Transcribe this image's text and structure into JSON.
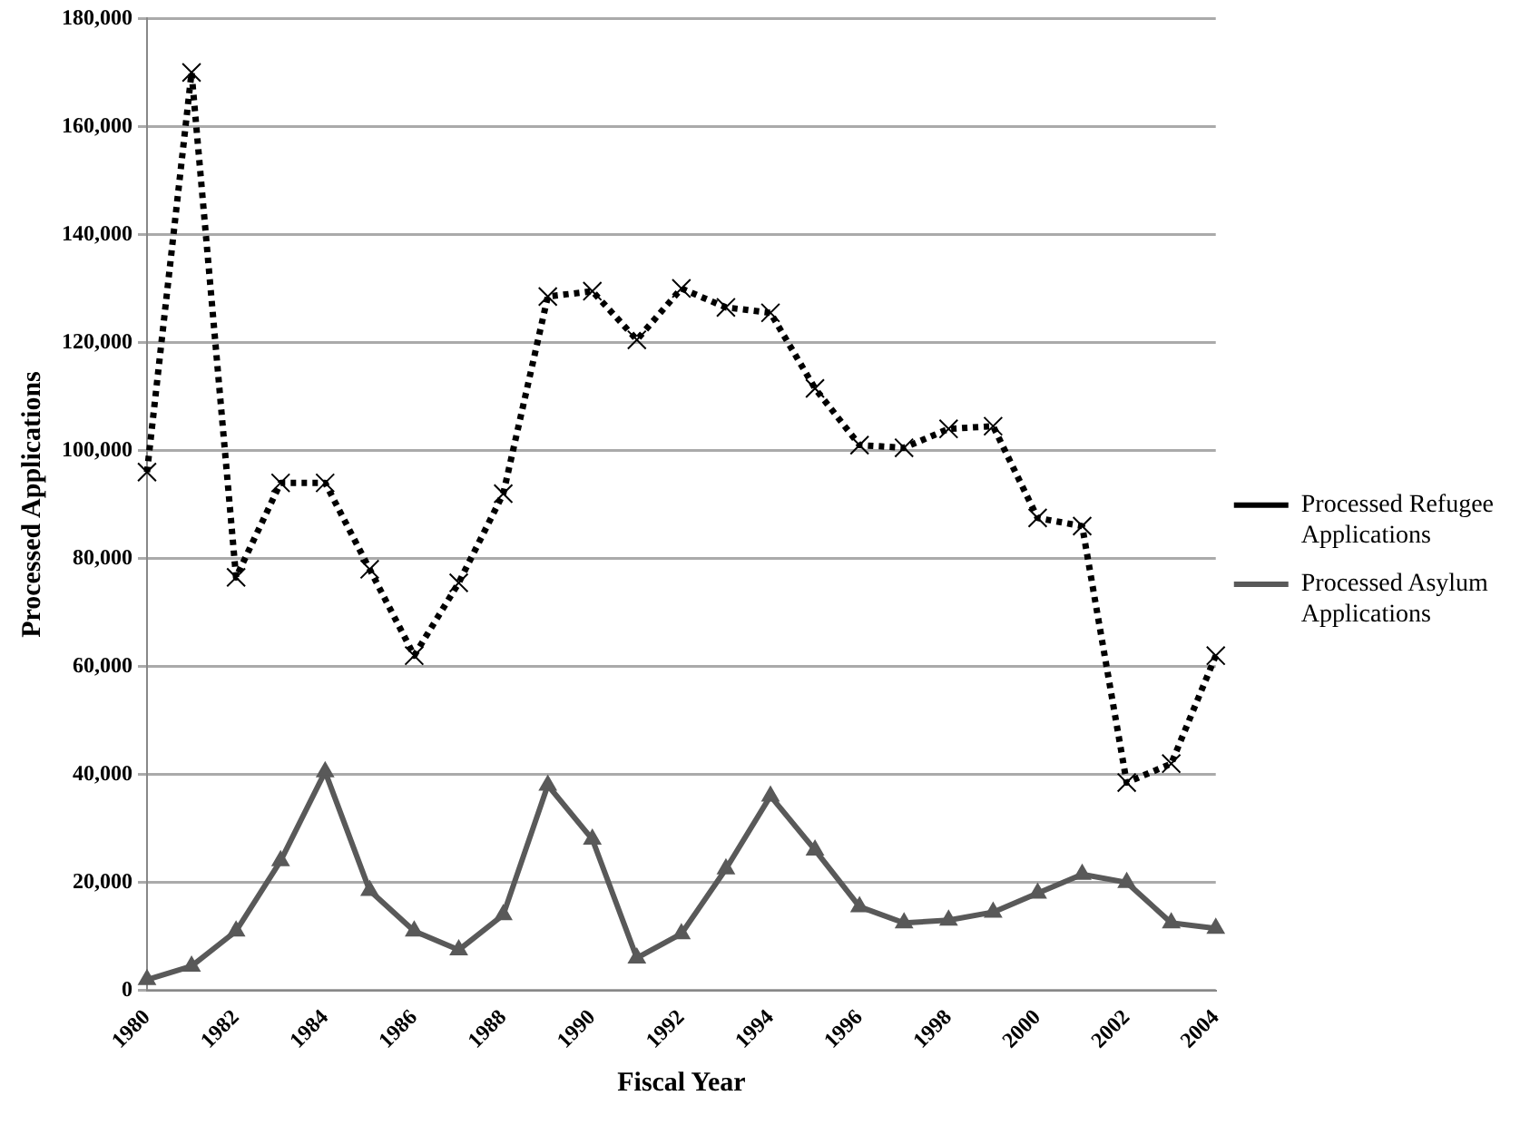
{
  "chart_data": {
    "type": "line",
    "xlabel": "Fiscal Year",
    "ylabel": "Processed Applications",
    "categories": [
      "1980",
      null,
      "1982",
      null,
      "1984",
      null,
      "1986",
      null,
      "1988",
      null,
      "1990",
      null,
      "1992",
      null,
      "1994",
      null,
      "1996",
      null,
      "1998",
      null,
      "2000",
      null,
      "2002",
      null,
      "2004"
    ],
    "series": [
      {
        "name": "Processed Refugee Applications",
        "color": "#000000",
        "marker": "cross",
        "line_style": "dotted",
        "values": [
          96000,
          170000,
          76500,
          94000,
          94000,
          78000,
          62000,
          75500,
          92000,
          128500,
          129500,
          120500,
          130000,
          126500,
          125500,
          111500,
          101000,
          100500,
          104000,
          104500,
          87500,
          86000,
          38500,
          42000,
          62000
        ]
      },
      {
        "name": "Processed Asylum Applications",
        "color": "#595959",
        "marker": "triangle",
        "line_style": "solid",
        "values": [
          2000,
          4500,
          11000,
          24000,
          40500,
          18500,
          11000,
          7500,
          14000,
          38000,
          28000,
          6000,
          10500,
          22500,
          36000,
          26000,
          15500,
          12500,
          13000,
          14500,
          18000,
          21500,
          20000,
          12500,
          11500
        ]
      }
    ],
    "ylim": [
      0,
      180000
    ],
    "yticks": [
      0,
      {
        "value": 20000,
        "label": "20,000"
      },
      {
        "value": 40000,
        "label": "40,000"
      },
      {
        "value": 60000,
        "label": "60,000"
      },
      {
        "value": 80000,
        "label": "80,000"
      },
      {
        "value": 100000,
        "label": "100,000"
      },
      {
        "value": 120000,
        "label": "120,000"
      },
      {
        "value": 140000,
        "label": "140,000"
      },
      {
        "value": 160000,
        "label": "160,000"
      },
      {
        "value": 180000,
        "label": "180,000"
      }
    ],
    "grid": "y",
    "legend": "right"
  }
}
